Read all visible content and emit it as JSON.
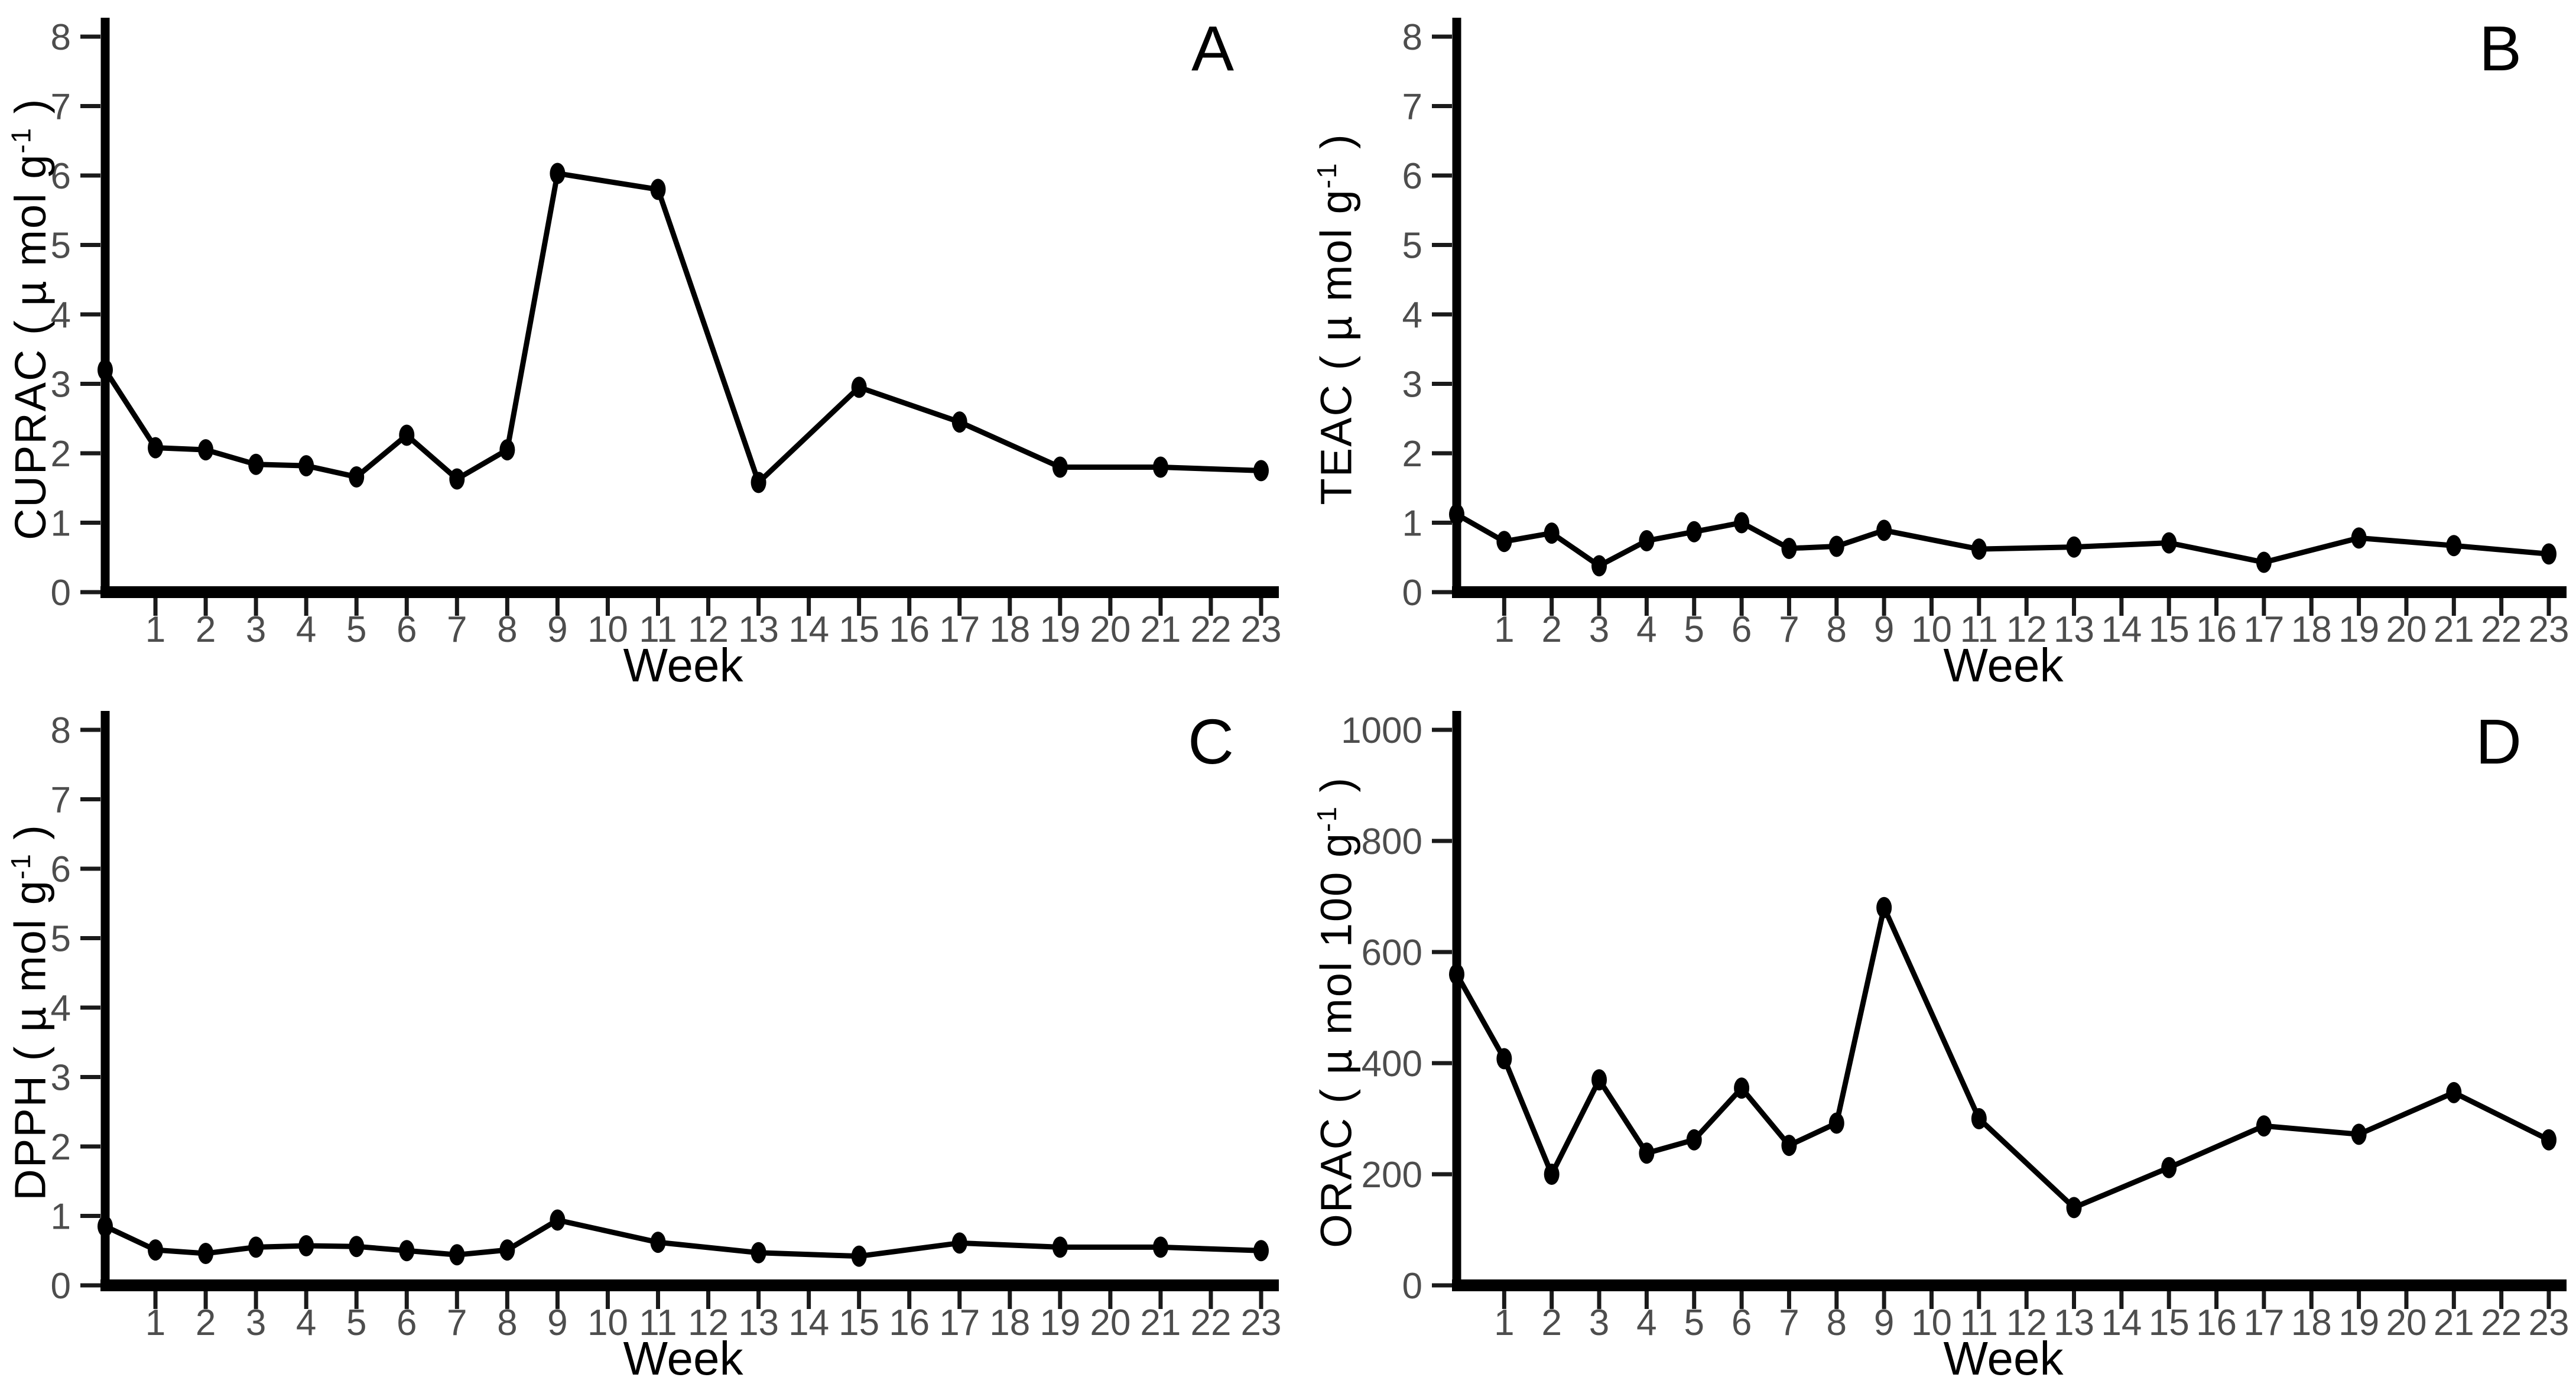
{
  "figure": {
    "background": "#ffffff",
    "axis_color": "#000000",
    "tick_color": "#1a1a1a",
    "tick_label_color": "#4d4d4d",
    "line_color": "#000000",
    "marker_color": "#000000",
    "label_color": "#000000"
  },
  "chart_data": [
    {
      "type": "line",
      "panel_label": "A",
      "xlabel": "Week",
      "ylabel": "CUPRAC ( µ mol g⁻¹ )",
      "ylabel_main": "CUPRAC ( µ mol g",
      "ylabel_sup": "-1",
      "ylabel_close": " )",
      "xlim": [
        0,
        23
      ],
      "ylim": [
        0,
        8
      ],
      "xticks": [
        1,
        2,
        3,
        4,
        5,
        6,
        7,
        8,
        9,
        10,
        11,
        12,
        13,
        14,
        15,
        16,
        17,
        18,
        19,
        20,
        21,
        22,
        23
      ],
      "yticks": [
        0,
        1,
        2,
        3,
        4,
        5,
        6,
        7,
        8
      ],
      "grid": false,
      "legend": "none",
      "x": [
        0,
        1,
        2,
        3,
        4,
        5,
        6,
        7,
        8,
        9,
        11,
        13,
        15,
        17,
        19,
        21,
        23
      ],
      "y": [
        3.2,
        2.08,
        2.05,
        1.84,
        1.82,
        1.66,
        2.26,
        1.63,
        2.05,
        6.03,
        5.8,
        1.58,
        2.95,
        2.45,
        1.8,
        1.8,
        1.75
      ]
    },
    {
      "type": "line",
      "panel_label": "B",
      "xlabel": "Week",
      "ylabel": "TEAC ( µ mol g⁻¹ )",
      "ylabel_main": "TEAC ( µ mol g",
      "ylabel_sup": "-1",
      "ylabel_close": " )",
      "xlim": [
        0,
        23
      ],
      "ylim": [
        0,
        8
      ],
      "xticks": [
        1,
        2,
        3,
        4,
        5,
        6,
        7,
        8,
        9,
        10,
        11,
        12,
        13,
        14,
        15,
        16,
        17,
        18,
        19,
        20,
        21,
        22,
        23
      ],
      "yticks": [
        0,
        1,
        2,
        3,
        4,
        5,
        6,
        7,
        8
      ],
      "grid": false,
      "legend": "none",
      "x": [
        0,
        1,
        2,
        3,
        4,
        5,
        6,
        7,
        8,
        9,
        11,
        13,
        15,
        17,
        19,
        21,
        23
      ],
      "y": [
        1.12,
        0.73,
        0.85,
        0.38,
        0.74,
        0.87,
        1.0,
        0.63,
        0.66,
        0.89,
        0.62,
        0.65,
        0.71,
        0.43,
        0.78,
        0.67,
        0.55
      ]
    },
    {
      "type": "line",
      "panel_label": "C",
      "xlabel": "Week",
      "ylabel": "DPPH ( µ mol g⁻¹ )",
      "ylabel_main": "DPPH ( µ mol g",
      "ylabel_sup": "-1",
      "ylabel_close": " )",
      "xlim": [
        0,
        23
      ],
      "ylim": [
        0,
        8
      ],
      "xticks": [
        1,
        2,
        3,
        4,
        5,
        6,
        7,
        8,
        9,
        10,
        11,
        12,
        13,
        14,
        15,
        16,
        17,
        18,
        19,
        20,
        21,
        22,
        23
      ],
      "yticks": [
        0,
        1,
        2,
        3,
        4,
        5,
        6,
        7,
        8
      ],
      "grid": false,
      "legend": "none",
      "x": [
        0,
        1,
        2,
        3,
        4,
        5,
        6,
        7,
        8,
        9,
        11,
        13,
        15,
        17,
        19,
        21,
        23
      ],
      "y": [
        0.85,
        0.51,
        0.46,
        0.55,
        0.57,
        0.56,
        0.5,
        0.44,
        0.51,
        0.94,
        0.62,
        0.47,
        0.42,
        0.61,
        0.55,
        0.55,
        0.5
      ]
    },
    {
      "type": "line",
      "panel_label": "D",
      "xlabel": "Week",
      "ylabel": "ORAC ( µ mol 100 g⁻¹ )",
      "ylabel_main": "ORAC ( µ mol 100 g",
      "ylabel_sup": "-1",
      "ylabel_close": " )",
      "xlim": [
        0,
        23
      ],
      "ylim": [
        0,
        1000
      ],
      "xticks": [
        1,
        2,
        3,
        4,
        5,
        6,
        7,
        8,
        9,
        10,
        11,
        12,
        13,
        14,
        15,
        16,
        17,
        18,
        19,
        20,
        21,
        22,
        23
      ],
      "yticks": [
        0,
        200,
        400,
        600,
        800,
        1000
      ],
      "grid": false,
      "legend": "none",
      "x": [
        0,
        1,
        2,
        3,
        4,
        5,
        6,
        7,
        8,
        9,
        11,
        13,
        15,
        17,
        19,
        21,
        23
      ],
      "y": [
        560,
        408,
        200,
        370,
        238,
        262,
        355,
        252,
        292,
        680,
        300,
        140,
        212,
        287,
        272,
        347,
        262
      ]
    }
  ]
}
